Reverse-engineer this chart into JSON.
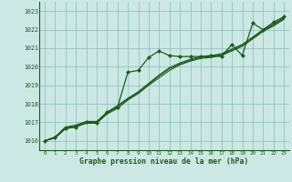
{
  "bg_color": "#cce8e4",
  "grid_color": "#88bbb5",
  "line_color": "#1a5c1a",
  "text_color": "#1a5c1a",
  "xlabel": "Graphe pression niveau de la mer (hPa)",
  "xlim": [
    -0.5,
    23.5
  ],
  "ylim": [
    1015.5,
    1023.5
  ],
  "yticks": [
    1016,
    1017,
    1018,
    1019,
    1020,
    1021,
    1022,
    1023
  ],
  "xticks": [
    0,
    1,
    2,
    3,
    4,
    5,
    6,
    7,
    8,
    9,
    10,
    11,
    12,
    13,
    14,
    15,
    16,
    17,
    18,
    19,
    20,
    21,
    22,
    23
  ],
  "series": [
    {
      "x": [
        0,
        1,
        2,
        3,
        4,
        5,
        6,
        7,
        8,
        9,
        10,
        11,
        12,
        13,
        14,
        15,
        16,
        17,
        18,
        19,
        20,
        21,
        22,
        23
      ],
      "y": [
        1016.0,
        1016.2,
        1016.7,
        1016.75,
        1017.0,
        1016.95,
        1017.55,
        1017.8,
        1019.7,
        1019.8,
        1020.5,
        1020.85,
        1020.6,
        1020.55,
        1020.55,
        1020.55,
        1020.6,
        1020.55,
        1021.2,
        1020.6,
        1022.35,
        1022.0,
        1022.4,
        1022.7
      ],
      "marker": true,
      "lw": 0.9
    },
    {
      "x": [
        0,
        1,
        2,
        3,
        4,
        5,
        6,
        7,
        8,
        9,
        10,
        11,
        12,
        13,
        14,
        15,
        16,
        17,
        18,
        19,
        20,
        21,
        22,
        23
      ],
      "y": [
        1016.0,
        1016.15,
        1016.65,
        1016.75,
        1016.95,
        1016.95,
        1017.45,
        1017.75,
        1018.2,
        1018.55,
        1019.0,
        1019.4,
        1019.8,
        1020.1,
        1020.3,
        1020.45,
        1020.5,
        1020.6,
        1020.85,
        1021.1,
        1021.5,
        1021.9,
        1022.2,
        1022.55
      ],
      "marker": false,
      "lw": 0.8
    },
    {
      "x": [
        0,
        1,
        2,
        3,
        4,
        5,
        6,
        7,
        8,
        9,
        10,
        11,
        12,
        13,
        14,
        15,
        16,
        17,
        18,
        19,
        20,
        21,
        22,
        23
      ],
      "y": [
        1016.0,
        1016.2,
        1016.7,
        1016.8,
        1017.0,
        1017.0,
        1017.5,
        1017.85,
        1018.25,
        1018.6,
        1019.05,
        1019.5,
        1019.9,
        1020.15,
        1020.35,
        1020.5,
        1020.55,
        1020.65,
        1020.9,
        1021.15,
        1021.55,
        1021.95,
        1022.25,
        1022.6
      ],
      "marker": false,
      "lw": 0.8
    },
    {
      "x": [
        0,
        1,
        2,
        3,
        4,
        5,
        6,
        7,
        8,
        9,
        10,
        11,
        12,
        13,
        14,
        15,
        16,
        17,
        18,
        19,
        20,
        21,
        22,
        23
      ],
      "y": [
        1016.0,
        1016.2,
        1016.75,
        1016.85,
        1017.05,
        1017.05,
        1017.55,
        1017.9,
        1018.3,
        1018.65,
        1019.1,
        1019.55,
        1019.95,
        1020.2,
        1020.4,
        1020.55,
        1020.6,
        1020.7,
        1020.95,
        1021.2,
        1021.6,
        1022.0,
        1022.3,
        1022.65
      ],
      "marker": false,
      "lw": 0.8
    }
  ]
}
